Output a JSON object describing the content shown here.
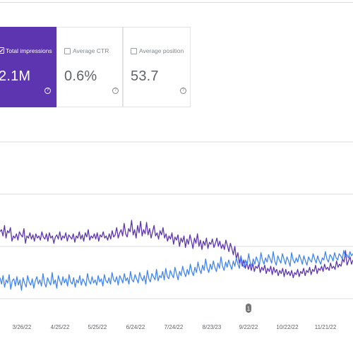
{
  "metrics": [
    {
      "id": "impressions",
      "label": "Total impressions",
      "value": "2.1M",
      "selected": true
    },
    {
      "id": "ctr",
      "label": "Average CTR",
      "value": "0.6%",
      "selected": false
    },
    {
      "id": "position",
      "label": "Average position",
      "value": "53.7",
      "selected": false
    }
  ],
  "help_glyph": "?",
  "colors": {
    "impressions": "#5e35b1",
    "clicks": "#4285f4",
    "grid": "#dadce0",
    "annotation": "#757575"
  },
  "chart_data": {
    "type": "line",
    "x_ticks": [
      "3/26/22",
      "4/25/22",
      "5/25/22",
      "6/24/22",
      "7/24/22",
      "8/23/23",
      "9/22/22",
      "10/22/22",
      "11/21/22"
    ],
    "annotation_marker": {
      "label": "1",
      "x_tick_index": 6
    },
    "grid": "horizontal",
    "series": [
      {
        "color_key": "impressions",
        "values": [
          64,
          66,
          60,
          70,
          58,
          65,
          63,
          68,
          55,
          60,
          58,
          62,
          56,
          64,
          61,
          59,
          67,
          53,
          60,
          58,
          63,
          57,
          61,
          55,
          62,
          58,
          60,
          56,
          64,
          59,
          57,
          62,
          55,
          63,
          58,
          60,
          53,
          59,
          61,
          57,
          64,
          56,
          60,
          58,
          63,
          55,
          61,
          59,
          57,
          62,
          54,
          60,
          58,
          64,
          57,
          61,
          55,
          63,
          59,
          66,
          56,
          60,
          58,
          62,
          57,
          63,
          55,
          61,
          59,
          64,
          58,
          60,
          56,
          62,
          57,
          65,
          59,
          61,
          68,
          58,
          63,
          66,
          60,
          72,
          62,
          59,
          67,
          64,
          75,
          61,
          66,
          58,
          70,
          63,
          74,
          60,
          66,
          62,
          73,
          61,
          67,
          58,
          64,
          70,
          60,
          63,
          57,
          65,
          61,
          68,
          58,
          62,
          55,
          60,
          57,
          63,
          52,
          59,
          56,
          61,
          50,
          58,
          54,
          60,
          49,
          57,
          52,
          61,
          55,
          48,
          58,
          53,
          62,
          50,
          56,
          47,
          55,
          51,
          58,
          48,
          54,
          52,
          57,
          49,
          53,
          58,
          50,
          55,
          48,
          52,
          47,
          56,
          51,
          45,
          53,
          48,
          42,
          50,
          38,
          44,
          34,
          40,
          31,
          37,
          29,
          35,
          28,
          33,
          27,
          34,
          26,
          31,
          29,
          33,
          25,
          30,
          27,
          32,
          24,
          29,
          26,
          31,
          23,
          30,
          25,
          28,
          22,
          27,
          24,
          29,
          21,
          28,
          23,
          26,
          22,
          27,
          20,
          25,
          23,
          28,
          21,
          26,
          24,
          29,
          22,
          27,
          25,
          30,
          23,
          28,
          26,
          32,
          24,
          29,
          27,
          31,
          26,
          33,
          28,
          30,
          27,
          34,
          29,
          31,
          28,
          36,
          30,
          33,
          31,
          38,
          35,
          46,
          32,
          36,
          40,
          33,
          37
        ]
      },
      {
        "color_key": "clicks",
        "values": [
          20,
          14,
          22,
          11,
          18,
          15,
          23,
          9,
          17,
          19,
          12,
          21,
          13,
          18,
          8,
          20,
          15,
          11,
          22,
          16,
          13,
          19,
          10,
          17,
          21,
          14,
          18,
          12,
          24,
          15,
          11,
          20,
          16,
          13,
          25,
          14,
          18,
          10,
          22,
          17,
          13,
          21,
          15,
          19,
          12,
          23,
          16,
          14,
          20,
          11,
          18,
          15,
          22,
          13,
          19,
          16,
          12,
          24,
          17,
          14,
          21,
          15,
          18,
          13,
          22,
          16,
          19,
          12,
          23,
          17,
          15,
          20,
          14,
          25,
          18,
          16,
          21,
          13,
          22,
          19,
          15,
          24,
          17,
          20,
          14,
          26,
          18,
          16,
          23,
          19,
          15,
          25,
          20,
          17,
          22,
          14,
          27,
          19,
          16,
          24,
          21,
          18,
          28,
          17,
          22,
          20,
          26,
          18,
          29,
          21,
          19,
          27,
          23,
          20,
          30,
          24,
          18,
          26,
          22,
          31,
          25,
          21,
          28,
          23,
          33,
          26,
          22,
          30,
          25,
          35,
          28,
          24,
          32,
          27,
          38,
          29,
          25,
          33,
          28,
          36,
          30,
          26,
          34,
          29,
          40,
          31,
          27,
          35,
          30,
          37,
          32,
          28,
          36,
          31,
          39,
          33,
          29,
          41,
          34,
          30,
          37,
          32,
          43,
          35,
          31,
          38,
          33,
          40,
          36,
          32,
          44,
          37,
          33,
          39,
          35,
          42,
          38,
          34,
          45,
          36,
          32,
          41,
          37,
          34,
          43,
          38,
          33,
          40,
          36,
          31,
          44,
          37,
          34,
          39,
          35,
          42,
          38,
          33,
          41,
          36,
          32,
          40,
          37,
          35,
          43,
          38,
          34,
          41,
          36,
          33,
          39,
          37,
          45,
          38,
          35,
          42,
          40,
          36,
          44,
          39,
          37,
          43,
          41,
          38,
          46,
          40,
          42,
          39,
          45,
          41,
          43
        ]
      }
    ]
  }
}
